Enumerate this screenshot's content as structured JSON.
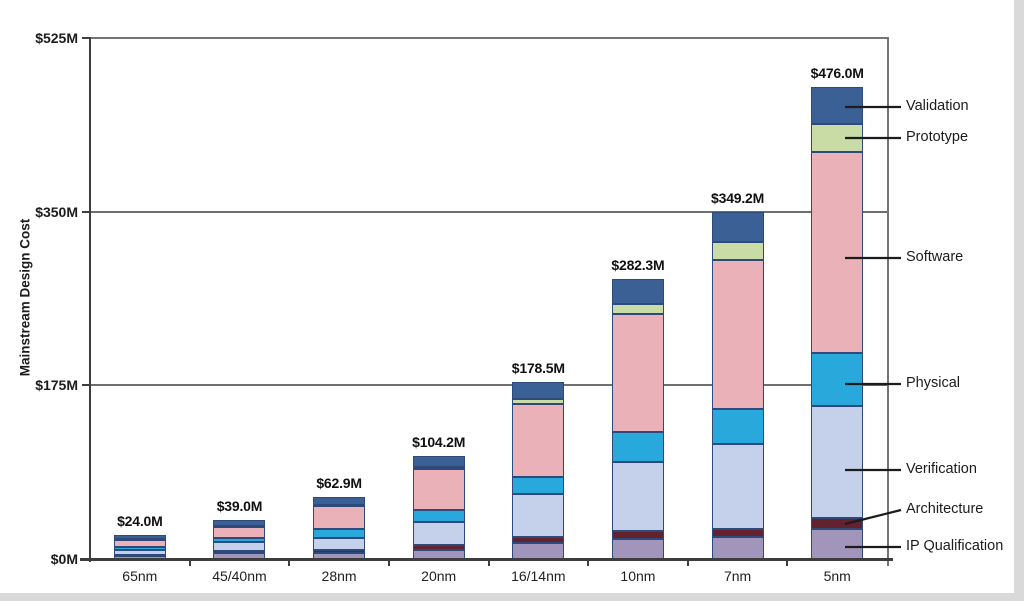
{
  "screen": {
    "background_color": "#ffffff",
    "edge_strip_color": "#d9d9d9"
  },
  "chart_data": {
    "type": "bar",
    "stacked": true,
    "title": "",
    "xlabel": "",
    "ylabel": "Mainstream Design Cost",
    "ylim": [
      0,
      525
    ],
    "yticks": {
      "values": [
        0,
        175,
        350,
        525
      ],
      "labels": [
        "$0M",
        "$175M",
        "$350M",
        "$525M"
      ]
    },
    "grid": "horizontal gridlines at 175 and 350, framed plot area",
    "legend_position": "right, leader lines pointing to 5nm bar segments",
    "categories": [
      "65nm",
      "45/40nm",
      "28nm",
      "20nm",
      "16/14nm",
      "10nm",
      "7nm",
      "5nm"
    ],
    "totals": [
      24.0,
      39.0,
      62.9,
      104.2,
      178.5,
      282.3,
      349.2,
      476.0
    ],
    "total_labels": [
      "$24.0M",
      "$39.0M",
      "$62.9M",
      "$104.2M",
      "$178.5M",
      "$282.3M",
      "$349.2M",
      "$476.0M"
    ],
    "series": [
      {
        "name": "IP Qualification",
        "color": "#a195bb",
        "values": [
          3.0,
          6.5,
          6.0,
          9.0,
          16.0,
          20.0,
          22.0,
          30.0
        ]
      },
      {
        "name": "Architecture",
        "color": "#63222e",
        "values": [
          1.5,
          2.0,
          3.5,
          5.0,
          6.0,
          8.0,
          8.2,
          11.0
        ]
      },
      {
        "name": "Verification",
        "color": "#c5d1ea",
        "values": [
          5.0,
          8.5,
          12.0,
          23.0,
          43.0,
          70.0,
          86.0,
          113.0
        ]
      },
      {
        "name": "Physical",
        "color": "#29a8dc",
        "values": [
          2.5,
          4.0,
          9.0,
          12.0,
          18.0,
          30.0,
          35.0,
          54.0
        ]
      },
      {
        "name": "Software",
        "color": "#eab1b8",
        "values": [
          8.0,
          12.0,
          23.0,
          41.2,
          73.5,
          119.3,
          150.0,
          202.0
        ]
      },
      {
        "name": "Prototype",
        "color": "#c9dca6",
        "values": [
          0.5,
          0.5,
          1.4,
          3.0,
          5.0,
          10.0,
          18.0,
          28.0
        ]
      },
      {
        "name": "Validation",
        "color": "#3b6096",
        "values": [
          3.5,
          5.5,
          8.0,
          11.0,
          17.0,
          25.0,
          30.0,
          38.0
        ]
      }
    ],
    "legend": [
      {
        "label": "Validation"
      },
      {
        "label": "Prototype"
      },
      {
        "label": "Software"
      },
      {
        "label": "Physical"
      },
      {
        "label": "Verification"
      },
      {
        "label": "Architecture"
      },
      {
        "label": "IP Qualification"
      }
    ],
    "bar_border_color": "#2e4a7a",
    "axis_color": "#3d3d3d",
    "frame_color": "#757575",
    "grid_color": "#6f6f6f",
    "leader_line_color": "#1c1c1c"
  }
}
